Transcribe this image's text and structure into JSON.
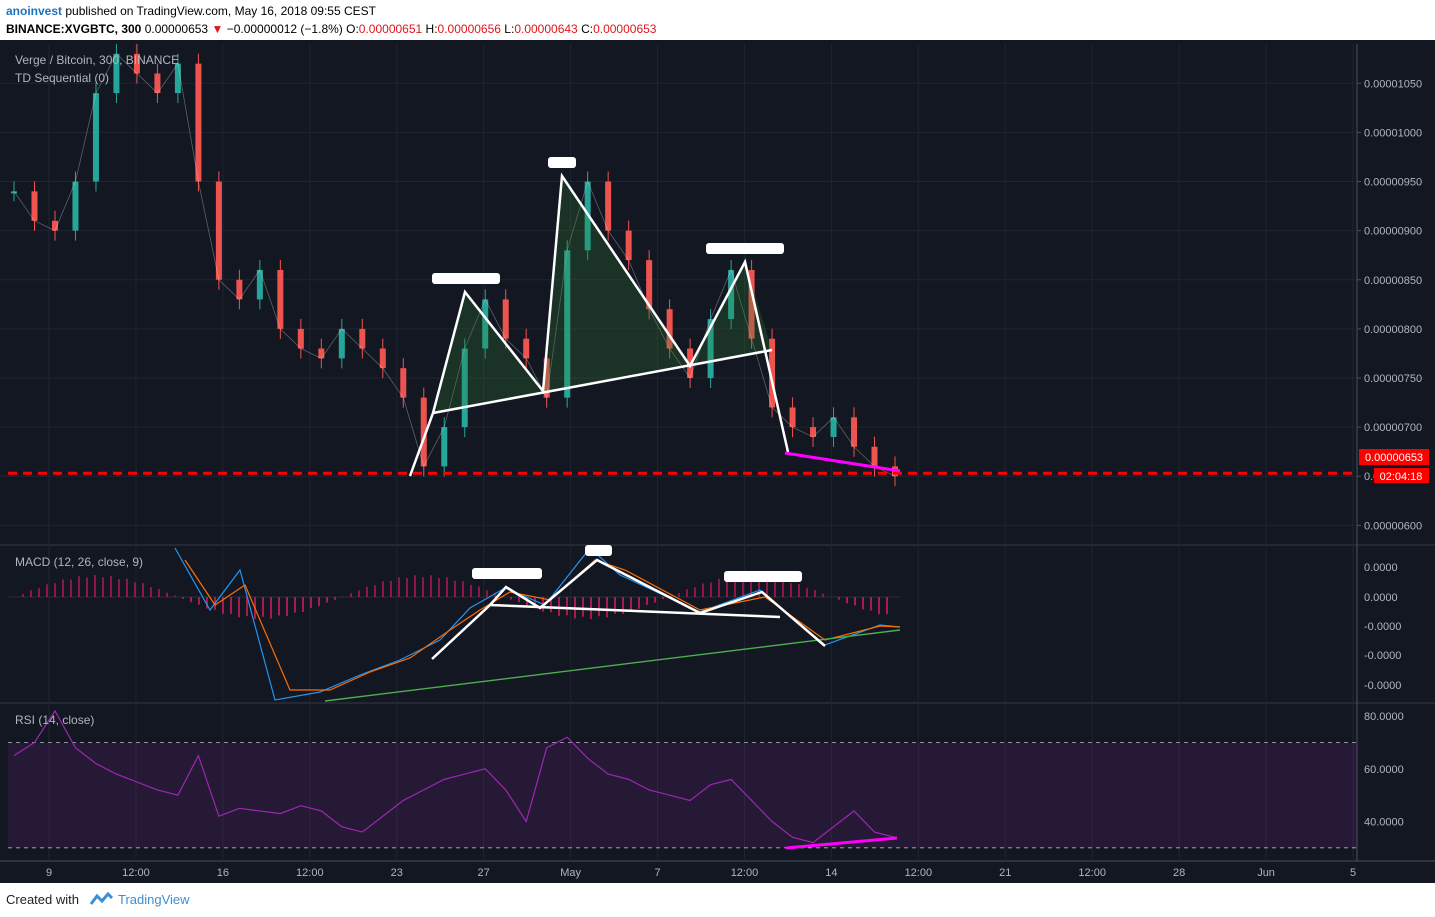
{
  "header": {
    "author": "anoinvest",
    "published": "published on TradingView.com, May 16, 2018 09:55 CEST",
    "symbol": "BINANCE:XVGBTC, 300",
    "last_price": "0.00000653",
    "change": "−0.00000012 (−1.8%)",
    "o_label": "O:",
    "o_value": "0.00000651",
    "h_label": "H:",
    "h_value": "0.00000656",
    "l_label": "L:",
    "l_value": "0.00000643",
    "c_label": "C:",
    "c_value": "0.00000653"
  },
  "main_pane": {
    "title": "Verge / Bitcoin, 300, BINANCE",
    "indicator": "TD Sequential (0)",
    "price_label": "0.00000653",
    "countdown": "02:04:18"
  },
  "macd_pane": {
    "title": "MACD (12, 26, close, 9)"
  },
  "rsi_pane": {
    "title": "RSI (14, close)"
  },
  "footer": {
    "created": "Created with",
    "brand": "TradingView"
  },
  "colors": {
    "background": "#131722",
    "up": "#26a69a",
    "down": "#ef5350",
    "price_line": "#ff0000",
    "pattern": "#ffffff",
    "divergence": "#ff00ff",
    "macd": "#2196f3",
    "signal": "#ff6d00",
    "rsi": "#9c27b0"
  },
  "chart_data": [
    {
      "type": "line",
      "title": "Verge / Bitcoin, 300, BINANCE",
      "x_ticks": [
        "9",
        "12:00",
        "16",
        "12:00",
        "23",
        "27",
        "May",
        "7",
        "12:00",
        "14",
        "12:00",
        "21",
        "12:00",
        "28",
        "Jun",
        "5"
      ],
      "y_ticks": [
        "0.00001050",
        "0.00001000",
        "0.00000950",
        "0.00000900",
        "0.00000850",
        "0.00000800",
        "0.00000750",
        "0.00000700",
        "0.00000650",
        "0.00000600"
      ],
      "series": [
        {
          "values": [
            9.4e-06,
            9.1e-06,
            9e-06,
            9.5e-06,
            1.04e-05,
            1.08e-05,
            1.06e-05,
            1.04e-05,
            1.07e-05,
            9.5e-06,
            8.5e-06,
            8.3e-06,
            8.6e-06,
            8e-06,
            7.8e-06,
            7.7e-06,
            8e-06,
            7.8e-06,
            7.6e-06,
            7.3e-06,
            6.6e-06,
            7e-06,
            7.8e-06,
            8.3e-06,
            7.9e-06,
            7.7e-06,
            7.3e-06,
            8.8e-06,
            9.5e-06,
            9e-06,
            8.7e-06,
            8.2e-06,
            7.8e-06,
            7.5e-06,
            8.1e-06,
            8.6e-06,
            7.9e-06,
            7.2e-06,
            7e-06,
            6.9e-06,
            7.1e-06,
            6.8e-06,
            6.6e-06,
            6.5e-06
          ]
        }
      ],
      "current_price": 6.53e-06,
      "ylim": [
        5.8e-06,
        1.09e-05
      ]
    },
    {
      "type": "bar",
      "title": "MACD (12, 26, close, 9)",
      "y_ticks": [
        "0.0000",
        "0.0000",
        "-0.0000",
        "-0.0000",
        "-0.0000"
      ]
    },
    {
      "type": "line",
      "title": "RSI (14, close)",
      "y_ticks": [
        "80.0000",
        "60.0000",
        "40.0000"
      ],
      "bands": [
        70,
        30
      ],
      "series": [
        {
          "values": [
            65,
            70,
            82,
            68,
            62,
            58,
            55,
            52,
            50,
            65,
            42,
            45,
            44,
            43,
            46,
            44,
            38,
            36,
            42,
            48,
            52,
            56,
            58,
            60,
            52,
            40,
            68,
            72,
            64,
            58,
            56,
            52,
            50,
            48,
            54,
            56,
            48,
            40,
            34,
            32,
            38,
            44,
            36,
            34
          ]
        }
      ],
      "ylim": [
        25,
        85
      ]
    }
  ]
}
